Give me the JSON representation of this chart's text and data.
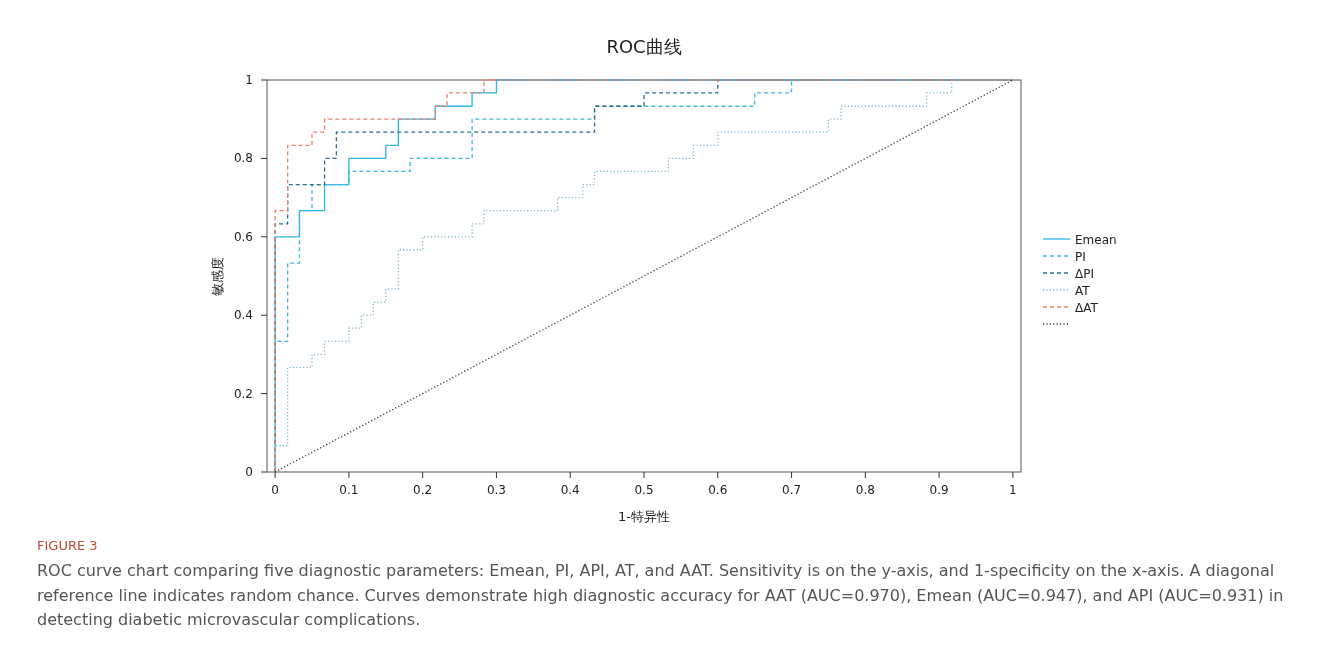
{
  "chart_data": {
    "type": "line",
    "title": "ROC曲线",
    "xlabel": "1-特异性",
    "ylabel": "敏感度",
    "xlim": [
      -0.011,
      1.011
    ],
    "ylim": [
      0,
      1
    ],
    "xticks": [
      0,
      0.1,
      0.2,
      0.3,
      0.4,
      0.5,
      0.6,
      0.7,
      0.8,
      0.9,
      1
    ],
    "yticks": [
      0,
      0.2,
      0.4,
      0.6,
      0.8,
      1
    ],
    "legend": "right",
    "series": [
      {
        "name": "Emean",
        "color": "#29b6e8",
        "line_style": "solid",
        "x": [
          0,
          0,
          0.033,
          0.033,
          0.067,
          0.067,
          0.1,
          0.1,
          0.15,
          0.15,
          0.167,
          0.167,
          0.217,
          0.217,
          0.267,
          0.267,
          0.3,
          0.3,
          1
        ],
        "values": [
          0,
          0.6,
          0.6,
          0.667,
          0.667,
          0.733,
          0.733,
          0.8,
          0.8,
          0.833,
          0.833,
          0.9,
          0.9,
          0.933,
          0.933,
          0.967,
          0.967,
          1,
          1
        ]
      },
      {
        "name": "PI",
        "color": "#3bb8e0",
        "line_style": "dashed",
        "x": [
          0,
          0,
          0.017,
          0.017,
          0.033,
          0.033,
          0.05,
          0.05,
          0.1,
          0.1,
          0.183,
          0.183,
          0.267,
          0.267,
          0.433,
          0.433,
          0.65,
          0.65,
          0.7,
          0.7,
          1
        ],
        "values": [
          0,
          0.333,
          0.333,
          0.533,
          0.533,
          0.667,
          0.667,
          0.733,
          0.733,
          0.767,
          0.767,
          0.8,
          0.8,
          0.9,
          0.9,
          0.933,
          0.933,
          0.967,
          0.967,
          1,
          1
        ]
      },
      {
        "name": "ΔPI",
        "color": "#2a6f86",
        "line_style": "dashed",
        "x": [
          0,
          0,
          0.017,
          0.017,
          0.067,
          0.067,
          0.083,
          0.083,
          0.433,
          0.433,
          0.5,
          0.5,
          0.6,
          0.6,
          1
        ],
        "values": [
          0,
          0.633,
          0.633,
          0.733,
          0.733,
          0.8,
          0.8,
          0.867,
          0.867,
          0.933,
          0.933,
          0.967,
          0.967,
          1,
          1
        ]
      },
      {
        "name": "AT",
        "color": "#7fb3cc",
        "line_style": "dotted",
        "x": [
          0,
          0,
          0.017,
          0.017,
          0.05,
          0.05,
          0.067,
          0.067,
          0.1,
          0.1,
          0.117,
          0.117,
          0.133,
          0.133,
          0.15,
          0.15,
          0.167,
          0.167,
          0.2,
          0.2,
          0.267,
          0.267,
          0.283,
          0.283,
          0.383,
          0.383,
          0.417,
          0.417,
          0.433,
          0.433,
          0.533,
          0.533,
          0.567,
          0.567,
          0.6,
          0.6,
          0.75,
          0.75,
          0.767,
          0.767,
          0.883,
          0.883,
          0.917,
          0.917,
          1
        ],
        "values": [
          0,
          0.067,
          0.067,
          0.267,
          0.267,
          0.3,
          0.3,
          0.333,
          0.333,
          0.367,
          0.367,
          0.4,
          0.4,
          0.433,
          0.433,
          0.467,
          0.467,
          0.567,
          0.567,
          0.6,
          0.6,
          0.633,
          0.633,
          0.667,
          0.667,
          0.7,
          0.7,
          0.733,
          0.733,
          0.767,
          0.767,
          0.8,
          0.8,
          0.833,
          0.833,
          0.867,
          0.867,
          0.9,
          0.9,
          0.933,
          0.933,
          0.967,
          0.967,
          1,
          1
        ]
      },
      {
        "name": "ΔAT",
        "color": "#f07f67",
        "line_style": "dashed",
        "x": [
          0,
          0,
          0.017,
          0.017,
          0.05,
          0.05,
          0.067,
          0.067,
          0.217,
          0.217,
          0.233,
          0.233,
          0.283,
          0.283,
          1
        ],
        "values": [
          0,
          0.667,
          0.667,
          0.833,
          0.833,
          0.867,
          0.867,
          0.9,
          0.9,
          0.933,
          0.933,
          0.967,
          0.967,
          1,
          1
        ]
      },
      {
        "color": "#333333",
        "line_style": "dotted",
        "x": [
          0,
          1
        ],
        "values": [
          0,
          1
        ]
      }
    ],
    "annotations": [
      "FIGURE 3",
      "ROC curve chart comparing five diagnostic parameters: Emean, PI, API, AT, and AAT. Sensitivity is on the y-axis, and 1-specificity on the x-axis. A diagonal reference line indicates random chance. Curves demonstrate high diagnostic accuracy for AAT (AUC=0.970), Emean (AUC=0.947), and API (AUC=0.931) in detecting diabetic microvascular complications."
    ]
  }
}
